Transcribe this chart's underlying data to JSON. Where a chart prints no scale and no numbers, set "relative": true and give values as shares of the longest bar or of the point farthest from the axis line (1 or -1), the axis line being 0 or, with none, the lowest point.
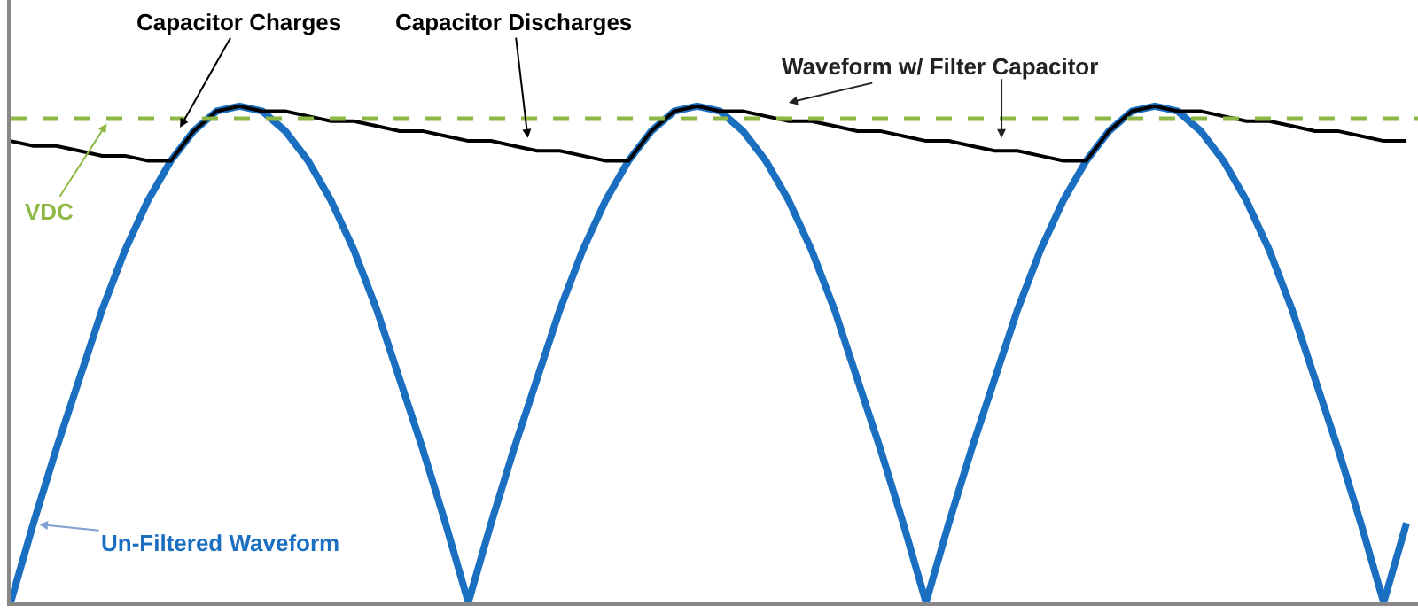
{
  "chart_data": {
    "type": "line",
    "relative": true,
    "categories": [
      null,
      null,
      null,
      null,
      null,
      null,
      null,
      null,
      null,
      null,
      null,
      null,
      null,
      null,
      null,
      null,
      null,
      null,
      null,
      null,
      null,
      null,
      null,
      null,
      null,
      null,
      null,
      null,
      null,
      null,
      null,
      null,
      null,
      null,
      null,
      null,
      null,
      null,
      null,
      null,
      null,
      null,
      null,
      null,
      null,
      null,
      null,
      null,
      null,
      null,
      null,
      null,
      null,
      null,
      null,
      null,
      null,
      null,
      null,
      null,
      null,
      null
    ],
    "series": [
      {
        "name": "Un-Filtered Waveform",
        "color": "#1a6fc0",
        "values": [
          0,
          0.16,
          0.31,
          0.45,
          0.59,
          0.71,
          0.81,
          0.89,
          0.95,
          0.99,
          1,
          0.99,
          0.95,
          0.89,
          0.81,
          0.71,
          0.59,
          0.45,
          0.31,
          0.16,
          0,
          0.16,
          0.31,
          0.45,
          0.59,
          0.71,
          0.81,
          0.89,
          0.95,
          0.99,
          1,
          0.99,
          0.95,
          0.89,
          0.81,
          0.71,
          0.59,
          0.45,
          0.31,
          0.16,
          0,
          0.16,
          0.31,
          0.45,
          0.59,
          0.71,
          0.81,
          0.89,
          0.95,
          0.99,
          1,
          0.99,
          0.95,
          0.89,
          0.81,
          0.71,
          0.59,
          0.45,
          0.31,
          0.16,
          0,
          0.16
        ]
      },
      {
        "name": "Waveform w/ Filter Capacitor",
        "color": "#000000",
        "values": [
          0.93,
          0.92,
          0.92,
          0.91,
          0.9,
          0.9,
          0.89,
          0.89,
          0.95,
          0.99,
          1,
          0.99,
          0.99,
          0.98,
          0.97,
          0.97,
          0.96,
          0.95,
          0.95,
          0.94,
          0.93,
          0.93,
          0.92,
          0.91,
          0.91,
          0.9,
          0.89,
          0.89,
          0.95,
          0.99,
          1,
          0.99,
          0.99,
          0.98,
          0.97,
          0.97,
          0.96,
          0.95,
          0.95,
          0.94,
          0.93,
          0.93,
          0.92,
          0.91,
          0.91,
          0.9,
          0.89,
          0.89,
          0.95,
          0.99,
          1,
          0.99,
          0.99,
          0.98,
          0.97,
          0.97,
          0.96,
          0.95,
          0.95,
          0.94,
          0.93,
          0.93
        ]
      }
    ],
    "ref_lines": [
      {
        "axis": "y",
        "value": 0.975,
        "label": "VDC",
        "color": "#8db843",
        "line_style": "dashed"
      }
    ],
    "annotations": [
      "Capacitor Charges",
      "Capacitor Discharges"
    ],
    "marker": "none",
    "line_style": "solid",
    "legend": false
  }
}
